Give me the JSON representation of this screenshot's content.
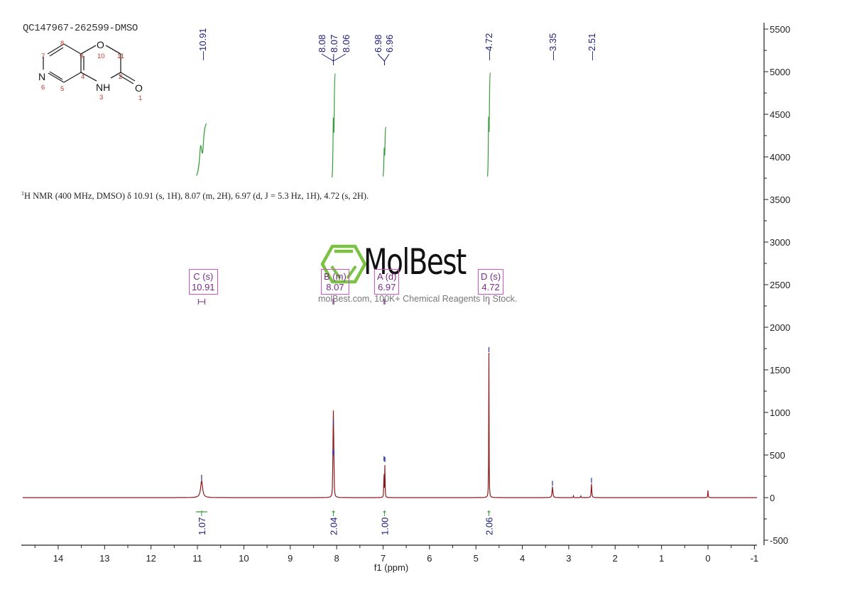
{
  "sample_id": "QC147967-262599-DMSO",
  "structure": {
    "atoms": [
      {
        "label": "O",
        "num": "10"
      },
      {
        "label": "N",
        "num": "6"
      },
      {
        "label": "NH",
        "num": "3"
      },
      {
        "label": "O",
        "num": "1"
      }
    ],
    "numbers": [
      "1",
      "2",
      "3",
      "4",
      "5",
      "6",
      "7",
      "8",
      "9",
      "10",
      "11"
    ]
  },
  "summary_text": {
    "sup": "1",
    "text": "H NMR (400 MHz, DMSO) δ 10.91 (s, 1H), 8.07 (m, 2H), 6.97 (d, J = 5.3 Hz, 1H), 4.72 (s, 2H)."
  },
  "watermark": {
    "logo": "MolBest",
    "tagline": "molBest.com, 100K+ Chemical Reagents In Stock."
  },
  "peak_labels_top": [
    {
      "group": "10.91",
      "values": [
        "10.91"
      ]
    },
    {
      "group": "8.07",
      "values": [
        "8.08",
        "8.07",
        "8.06"
      ]
    },
    {
      "group": "6.97",
      "values": [
        "6.98",
        "6.96"
      ]
    },
    {
      "group": "4.72",
      "values": [
        "4.72"
      ]
    },
    {
      "group": "3.35",
      "values": [
        "3.35"
      ]
    },
    {
      "group": "2.51",
      "values": [
        "2.51"
      ]
    }
  ],
  "multiplet_boxes": [
    {
      "letter": "C (s)",
      "shift": "10.91"
    },
    {
      "letter": "B (m)",
      "shift": "8.07"
    },
    {
      "letter": "A (d)",
      "shift": "6.97"
    },
    {
      "letter": "D (s)",
      "shift": "4.72"
    }
  ],
  "integrals": [
    {
      "ppm": 10.91,
      "value": "1.07"
    },
    {
      "ppm": 8.07,
      "value": "2.04"
    },
    {
      "ppm": 6.97,
      "value": "1.00"
    },
    {
      "ppm": 4.72,
      "value": "2.06"
    }
  ],
  "colors": {
    "spectrum": "#8b1a1a",
    "integral": "#3a9a3a",
    "peak_label": "#1a1a7a",
    "box": "#cc55cc",
    "axis": "#222222",
    "logo_green": "#7cc242"
  },
  "chart_data": {
    "type": "line",
    "title": "QC147967-262599-DMSO",
    "xlabel": "f1 (ppm)",
    "ylabel": "",
    "xlim": [
      14.8,
      -1
    ],
    "ylim": [
      -500,
      5600
    ],
    "x_ticks": [
      "14",
      "13",
      "12",
      "11",
      "10",
      "9",
      "8",
      "7",
      "6",
      "5",
      "4",
      "3",
      "2",
      "1",
      "0",
      "-1"
    ],
    "y_ticks": [
      "5500",
      "5000",
      "4500",
      "4000",
      "3500",
      "3000",
      "2500",
      "2000",
      "1500",
      "1000",
      "500",
      "0",
      "-500"
    ],
    "grid": false,
    "peaks": [
      {
        "ppm": 10.91,
        "intensity": 200,
        "width": 0.05
      },
      {
        "ppm": 8.08,
        "intensity": 500,
        "width": 0.01
      },
      {
        "ppm": 8.07,
        "intensity": 840,
        "width": 0.01
      },
      {
        "ppm": 8.06,
        "intensity": 480,
        "width": 0.01
      },
      {
        "ppm": 6.98,
        "intensity": 420,
        "width": 0.008
      },
      {
        "ppm": 6.96,
        "intensity": 410,
        "width": 0.008
      },
      {
        "ppm": 4.72,
        "intensity": 1700,
        "width": 0.008
      },
      {
        "ppm": 3.35,
        "intensity": 130,
        "width": 0.02
      },
      {
        "ppm": 2.9,
        "intensity": 20,
        "width": 0.01
      },
      {
        "ppm": 2.74,
        "intensity": 20,
        "width": 0.01
      },
      {
        "ppm": 2.51,
        "intensity": 165,
        "width": 0.015
      },
      {
        "ppm": 0.0,
        "intensity": 85,
        "width": 0.01
      }
    ],
    "integral_curves": [
      {
        "ppm_start": 11.02,
        "ppm_end": 10.8,
        "y_bottom": 3780,
        "y_top": 4390
      },
      {
        "ppm_start": 8.1,
        "ppm_end": 8.03,
        "y_bottom": 3760,
        "y_top": 4980
      },
      {
        "ppm_start": 7.0,
        "ppm_end": 6.94,
        "y_bottom": 3770,
        "y_top": 4350
      },
      {
        "ppm_start": 4.75,
        "ppm_end": 4.69,
        "y_bottom": 3770,
        "y_top": 4990
      }
    ]
  }
}
